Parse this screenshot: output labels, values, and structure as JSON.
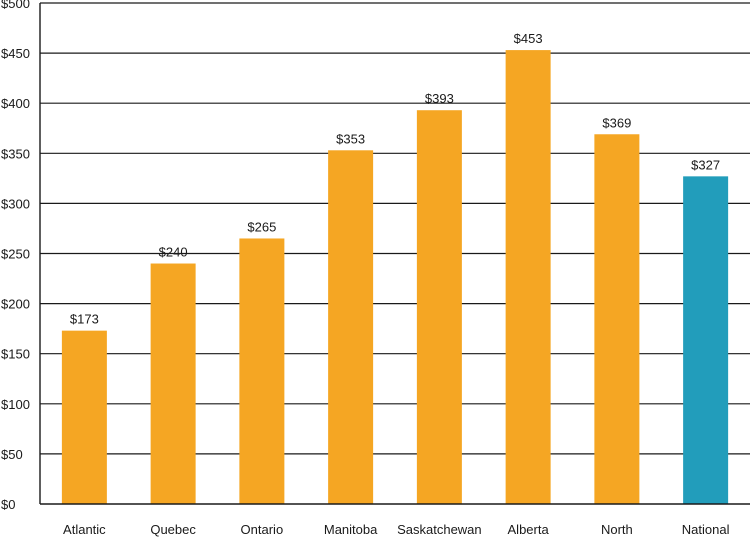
{
  "chart_data": {
    "type": "bar",
    "title": "",
    "xlabel": "",
    "ylabel": "",
    "categories": [
      "Atlantic",
      "Quebec",
      "Ontario",
      "Manitoba",
      "Saskatchewan",
      "Alberta",
      "North",
      "National"
    ],
    "values": [
      173,
      240,
      265,
      353,
      393,
      453,
      369,
      327
    ],
    "data_labels": [
      "$173",
      "$240",
      "$265",
      "$353",
      "$393",
      "$453",
      "$369",
      "$327"
    ],
    "ylim": [
      0,
      500
    ],
    "yticks": [
      0,
      50,
      100,
      150,
      200,
      250,
      300,
      350,
      400,
      450,
      500
    ],
    "ytick_labels": [
      "$0",
      "$50",
      "$100",
      "$150",
      "$200",
      "$250",
      "$300",
      "$350",
      "$400",
      "$450",
      "$500"
    ],
    "grid": true,
    "legend": false,
    "colors": {
      "regional": "#f5a623",
      "highlight": "#229dbb"
    },
    "highlight_category": "National"
  }
}
